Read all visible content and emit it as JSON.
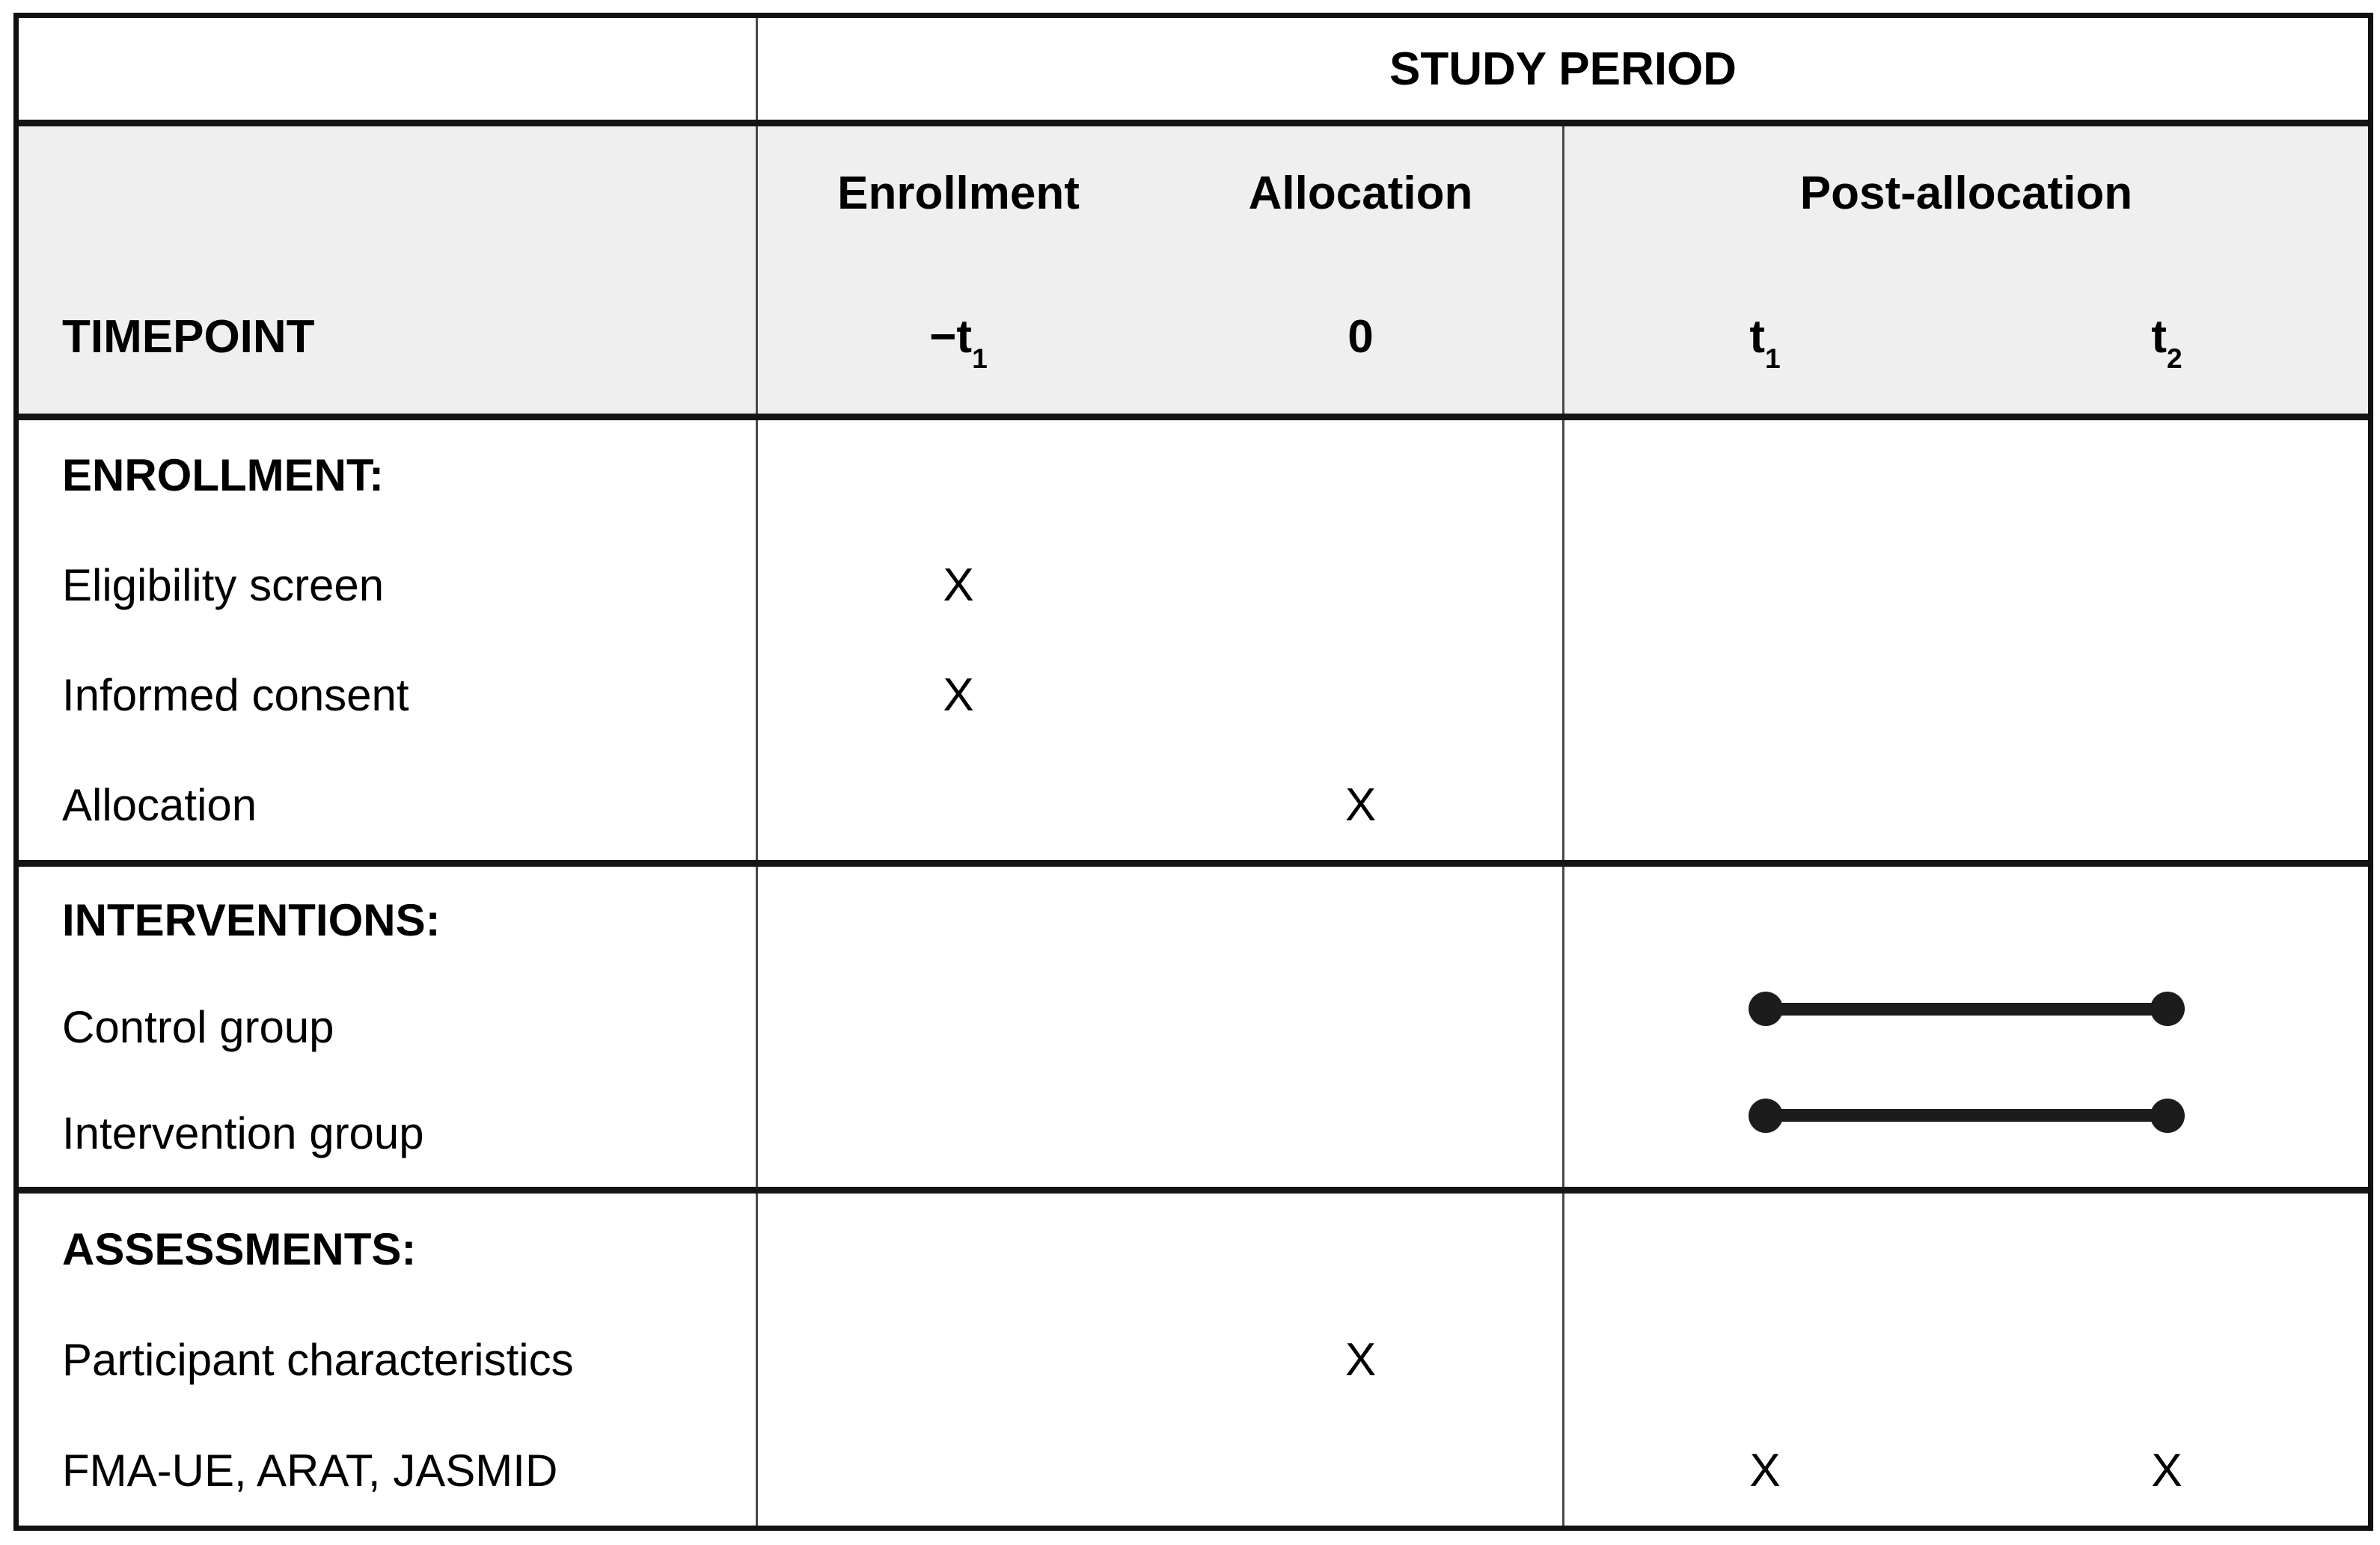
{
  "table": {
    "study_period_label": "STUDY PERIOD",
    "timepoint_row_label": "TIMEPOINT",
    "column_groups": [
      {
        "label": "Enrollment"
      },
      {
        "label": "Allocation"
      },
      {
        "label": "Post-allocation"
      }
    ],
    "timepoints": [
      {
        "base": "−t",
        "sub": "1"
      },
      {
        "base": "0",
        "sub": ""
      },
      {
        "base": "t",
        "sub": "1"
      },
      {
        "base": "t",
        "sub": "2"
      }
    ],
    "sections": [
      {
        "header": "ENROLLMENT:",
        "rows": [
          {
            "label": "Eligibility screen",
            "marks": [
              "X",
              "",
              "",
              ""
            ]
          },
          {
            "label": "Informed consent",
            "marks": [
              "X",
              "",
              "",
              ""
            ]
          },
          {
            "label": "Allocation",
            "marks": [
              "",
              "X",
              "",
              ""
            ]
          }
        ]
      },
      {
        "header": "INTERVENTIONS:",
        "rows": [
          {
            "label": "Control group",
            "bar": {
              "from_timepoint": "t1",
              "to_timepoint": "t2"
            }
          },
          {
            "label": "Intervention group",
            "bar": {
              "from_timepoint": "t1",
              "to_timepoint": "t2"
            }
          }
        ]
      },
      {
        "header": "ASSESSMENTS:",
        "rows": [
          {
            "label": "Participant characteristics",
            "marks": [
              "",
              "X",
              "",
              ""
            ]
          },
          {
            "label": "FMA-UE, ARAT, JASMID",
            "marks": [
              "",
              "",
              "X",
              "X"
            ]
          }
        ]
      }
    ],
    "colors": {
      "header_band_bg": "#efefef",
      "grid_line": "#111111",
      "text": "#000000"
    }
  }
}
